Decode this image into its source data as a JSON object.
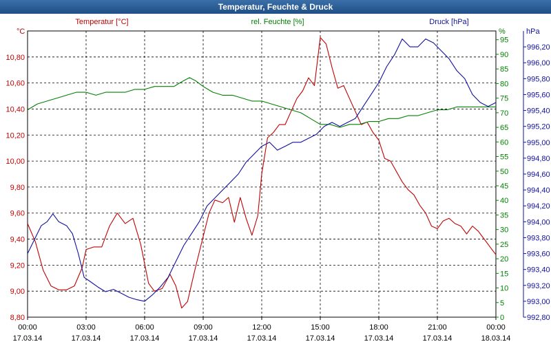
{
  "window": {
    "title": "Temperatur, Feuchte & Druck"
  },
  "chart_data": {
    "type": "line",
    "title": "Temperatur, Feuchte & Druck",
    "grid": true,
    "x_ticks": [
      {
        "hours": 0,
        "time": "00:00",
        "date": "17.03.14"
      },
      {
        "hours": 3,
        "time": "03:00",
        "date": "17.03.14"
      },
      {
        "hours": 6,
        "time": "06:00",
        "date": "17.03.14"
      },
      {
        "hours": 9,
        "time": "09:00",
        "date": "17.03.14"
      },
      {
        "hours": 12,
        "time": "12:00",
        "date": "17.03.14"
      },
      {
        "hours": 15,
        "time": "15:00",
        "date": "17.03.14"
      },
      {
        "hours": 18,
        "time": "18:00",
        "date": "17.03.14"
      },
      {
        "hours": 21,
        "time": "21:00",
        "date": "17.03.14"
      },
      {
        "hours": 24,
        "time": "00:00",
        "date": "18.03.14"
      }
    ],
    "xlim": [
      0,
      24
    ],
    "axes": {
      "temperature": {
        "label": "Temperatur [°C]",
        "unit": "°C",
        "color": "#c00000",
        "ylim": [
          8.8,
          11.0
        ],
        "ticks": [
          "8,80",
          "9,00",
          "9,20",
          "9,40",
          "9,60",
          "9,80",
          "10,00",
          "10,20",
          "10,40",
          "10,60",
          "10,80"
        ]
      },
      "humidity": {
        "label": "rel. Feuchte [%]",
        "unit": "%",
        "color": "#008000",
        "ylim": [
          0,
          98
        ],
        "ticks": [
          "0",
          "5",
          "10",
          "15",
          "20",
          "25",
          "30",
          "35",
          "40",
          "45",
          "50",
          "55",
          "60",
          "65",
          "70",
          "75",
          "80",
          "85",
          "90",
          "95"
        ]
      },
      "pressure": {
        "label": "Druck [hPa]",
        "unit": "hPa",
        "color": "#1010a0",
        "ylim": [
          992.8,
          996.4
        ],
        "ticks": [
          "992,80",
          "993,00",
          "993,20",
          "993,40",
          "993,60",
          "993,80",
          "994,00",
          "994,20",
          "994,40",
          "994,60",
          "994,80",
          "995,00",
          "995,20",
          "995,40",
          "995,60",
          "995,80",
          "996,00",
          "996,20"
        ]
      }
    },
    "series": [
      {
        "name": "Temperatur",
        "axis": "temperature",
        "points": [
          [
            0,
            9.52
          ],
          [
            0.4,
            9.38
          ],
          [
            0.8,
            9.16
          ],
          [
            1.2,
            9.04
          ],
          [
            1.6,
            9.01
          ],
          [
            2.0,
            9.01
          ],
          [
            2.4,
            9.04
          ],
          [
            2.8,
            9.18
          ],
          [
            3.0,
            9.32
          ],
          [
            3.4,
            9.34
          ],
          [
            3.8,
            9.34
          ],
          [
            4.2,
            9.5
          ],
          [
            4.6,
            9.6
          ],
          [
            5.0,
            9.52
          ],
          [
            5.4,
            9.56
          ],
          [
            5.8,
            9.36
          ],
          [
            6.2,
            9.06
          ],
          [
            6.5,
            9.0
          ],
          [
            6.9,
            9.02
          ],
          [
            7.3,
            9.13
          ],
          [
            7.6,
            9.04
          ],
          [
            7.9,
            8.87
          ],
          [
            8.2,
            8.92
          ],
          [
            8.6,
            9.18
          ],
          [
            9.0,
            9.42
          ],
          [
            9.3,
            9.6
          ],
          [
            9.6,
            9.7
          ],
          [
            10.0,
            9.68
          ],
          [
            10.3,
            9.72
          ],
          [
            10.6,
            9.53
          ],
          [
            10.9,
            9.72
          ],
          [
            11.2,
            9.56
          ],
          [
            11.5,
            9.43
          ],
          [
            11.8,
            9.58
          ],
          [
            12.0,
            9.9
          ],
          [
            12.3,
            10.18
          ],
          [
            12.6,
            10.22
          ],
          [
            12.9,
            10.28
          ],
          [
            13.2,
            10.28
          ],
          [
            13.5,
            10.38
          ],
          [
            13.8,
            10.48
          ],
          [
            14.1,
            10.54
          ],
          [
            14.4,
            10.64
          ],
          [
            14.7,
            10.58
          ],
          [
            15.0,
            10.95
          ],
          [
            15.3,
            10.9
          ],
          [
            15.6,
            10.72
          ],
          [
            15.9,
            10.56
          ],
          [
            16.2,
            10.58
          ],
          [
            16.5,
            10.48
          ],
          [
            16.8,
            10.38
          ],
          [
            17.1,
            10.28
          ],
          [
            17.4,
            10.3
          ],
          [
            17.7,
            10.22
          ],
          [
            18.0,
            10.16
          ],
          [
            18.3,
            10.02
          ],
          [
            18.6,
            10.0
          ],
          [
            18.9,
            9.92
          ],
          [
            19.2,
            9.84
          ],
          [
            19.5,
            9.78
          ],
          [
            19.8,
            9.74
          ],
          [
            20.1,
            9.66
          ],
          [
            20.4,
            9.6
          ],
          [
            20.7,
            9.5
          ],
          [
            21.0,
            9.48
          ],
          [
            21.3,
            9.54
          ],
          [
            21.6,
            9.56
          ],
          [
            21.9,
            9.52
          ],
          [
            22.2,
            9.5
          ],
          [
            22.5,
            9.44
          ],
          [
            22.8,
            9.5
          ],
          [
            23.1,
            9.46
          ],
          [
            23.4,
            9.4
          ],
          [
            23.7,
            9.34
          ],
          [
            24.0,
            9.28
          ]
        ]
      },
      {
        "name": "rel. Feuchte",
        "axis": "humidity",
        "points": [
          [
            0,
            71
          ],
          [
            0.5,
            73
          ],
          [
            1.0,
            74
          ],
          [
            1.5,
            75
          ],
          [
            2.0,
            76
          ],
          [
            2.5,
            77
          ],
          [
            3.0,
            77
          ],
          [
            3.5,
            76
          ],
          [
            4.0,
            77
          ],
          [
            4.5,
            77
          ],
          [
            5.0,
            77
          ],
          [
            5.5,
            78
          ],
          [
            6.0,
            78
          ],
          [
            6.5,
            79
          ],
          [
            7.0,
            79
          ],
          [
            7.5,
            79
          ],
          [
            8.0,
            81
          ],
          [
            8.3,
            82
          ],
          [
            8.6,
            81
          ],
          [
            9.0,
            79
          ],
          [
            9.5,
            77
          ],
          [
            10.0,
            76
          ],
          [
            10.5,
            76
          ],
          [
            11.0,
            75
          ],
          [
            11.5,
            74
          ],
          [
            12.0,
            74
          ],
          [
            12.5,
            73
          ],
          [
            13.0,
            72
          ],
          [
            13.5,
            71
          ],
          [
            14.0,
            70
          ],
          [
            14.5,
            68
          ],
          [
            15.0,
            66
          ],
          [
            15.5,
            66
          ],
          [
            16.0,
            65
          ],
          [
            16.5,
            66
          ],
          [
            17.0,
            66
          ],
          [
            17.5,
            67
          ],
          [
            18.0,
            67
          ],
          [
            18.5,
            68
          ],
          [
            19.0,
            68
          ],
          [
            19.5,
            69
          ],
          [
            20.0,
            69
          ],
          [
            20.5,
            70
          ],
          [
            21.0,
            71
          ],
          [
            21.5,
            71
          ],
          [
            22.0,
            72
          ],
          [
            22.5,
            72
          ],
          [
            23.0,
            72
          ],
          [
            23.5,
            72
          ],
          [
            24.0,
            72
          ]
        ]
      },
      {
        "name": "Druck",
        "axis": "pressure",
        "points": [
          [
            0,
            993.6
          ],
          [
            0.3,
            993.75
          ],
          [
            0.7,
            993.95
          ],
          [
            1.0,
            994.0
          ],
          [
            1.3,
            994.1
          ],
          [
            1.6,
            994.0
          ],
          [
            2.0,
            993.95
          ],
          [
            2.3,
            993.85
          ],
          [
            2.6,
            993.6
          ],
          [
            2.9,
            993.3
          ],
          [
            3.2,
            993.25
          ],
          [
            3.6,
            993.18
          ],
          [
            4.0,
            993.12
          ],
          [
            4.4,
            993.15
          ],
          [
            4.8,
            993.1
          ],
          [
            5.2,
            993.05
          ],
          [
            5.6,
            993.02
          ],
          [
            6.0,
            993.0
          ],
          [
            6.4,
            993.08
          ],
          [
            6.8,
            993.18
          ],
          [
            7.2,
            993.3
          ],
          [
            7.6,
            993.5
          ],
          [
            8.0,
            993.7
          ],
          [
            8.4,
            993.85
          ],
          [
            8.8,
            994.0
          ],
          [
            9.2,
            994.2
          ],
          [
            9.6,
            994.3
          ],
          [
            10.0,
            994.4
          ],
          [
            10.4,
            994.5
          ],
          [
            10.8,
            994.6
          ],
          [
            11.2,
            994.75
          ],
          [
            11.6,
            994.85
          ],
          [
            12.0,
            994.95
          ],
          [
            12.4,
            995.0
          ],
          [
            12.8,
            994.9
          ],
          [
            13.2,
            994.95
          ],
          [
            13.6,
            995.0
          ],
          [
            14.0,
            995.0
          ],
          [
            14.4,
            995.05
          ],
          [
            14.8,
            995.1
          ],
          [
            15.2,
            995.2
          ],
          [
            15.6,
            995.25
          ],
          [
            16.0,
            995.2
          ],
          [
            16.4,
            995.25
          ],
          [
            16.8,
            995.3
          ],
          [
            17.2,
            995.45
          ],
          [
            17.6,
            995.6
          ],
          [
            18.0,
            995.75
          ],
          [
            18.4,
            995.95
          ],
          [
            18.8,
            996.1
          ],
          [
            19.2,
            996.3
          ],
          [
            19.6,
            996.2
          ],
          [
            20.0,
            996.2
          ],
          [
            20.4,
            996.3
          ],
          [
            20.8,
            996.25
          ],
          [
            21.2,
            996.15
          ],
          [
            21.6,
            996.05
          ],
          [
            22.0,
            995.9
          ],
          [
            22.4,
            995.8
          ],
          [
            22.8,
            995.6
          ],
          [
            23.2,
            995.5
          ],
          [
            23.6,
            995.45
          ],
          [
            24.0,
            995.5
          ]
        ]
      }
    ]
  }
}
